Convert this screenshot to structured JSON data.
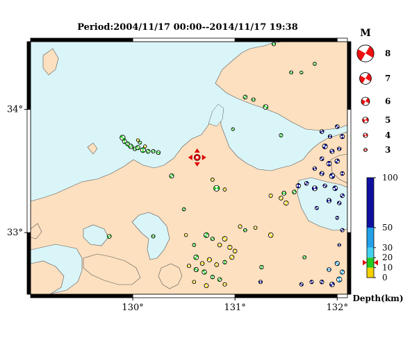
{
  "map": {
    "title": "Period:2004/11/17 00:00--2014/11/17 19:38",
    "lat_ticks": [
      {
        "label": "34°",
        "lat": 34.0
      },
      {
        "label": "33°",
        "lat": 33.0
      }
    ],
    "lon_ticks": [
      {
        "label": "130°",
        "lon": 130.0
      },
      {
        "label": "131°",
        "lon": 131.0
      },
      {
        "label": "132°",
        "lon": 132.0
      }
    ],
    "extent": {
      "lon_min": 129.0,
      "lon_max": 132.1,
      "lat_min": 32.5,
      "lat_max": 34.55
    },
    "colors": {
      "sea": "#d9f5f8",
      "land": "#fde0c0",
      "coast": "#555555",
      "grid": "#000000"
    },
    "epicenter": {
      "lon": 130.63,
      "lat": 33.61,
      "color": "#e00000"
    }
  },
  "legend": {
    "magnitude_title": "M",
    "magnitudes": [
      {
        "label": "8",
        "value": 8
      },
      {
        "label": "7",
        "value": 7
      },
      {
        "label": "6",
        "value": 6
      },
      {
        "label": "5",
        "value": 5
      },
      {
        "label": "4",
        "value": 4
      },
      {
        "label": "3",
        "value": 3
      }
    ],
    "depth_title": "Depth(km)",
    "depth_ticks": [
      {
        "label": "100",
        "value": 100
      },
      {
        "label": "50",
        "value": 50
      },
      {
        "label": "30",
        "value": 30
      },
      {
        "label": "20",
        "value": 20
      },
      {
        "label": "10",
        "value": 10
      },
      {
        "label": "0",
        "value": 0
      }
    ],
    "depth_colors": [
      {
        "from": 0,
        "to": 10,
        "color": "#f5d100"
      },
      {
        "from": 10,
        "to": 20,
        "color": "#22cc22"
      },
      {
        "from": 20,
        "to": 30,
        "color": "#44d0f0"
      },
      {
        "from": 30,
        "to": 50,
        "color": "#22a0e8"
      },
      {
        "from": 50,
        "to": 100,
        "color": "#1010a0"
      }
    ]
  },
  "events": [
    {
      "lon": 129.9,
      "lat": 33.77,
      "m": 4.6,
      "d": 15
    },
    {
      "lon": 129.92,
      "lat": 33.74,
      "m": 4.2,
      "d": 15
    },
    {
      "lon": 129.95,
      "lat": 33.72,
      "m": 4.0,
      "d": 15
    },
    {
      "lon": 129.98,
      "lat": 33.7,
      "m": 4.3,
      "d": 15
    },
    {
      "lon": 130.02,
      "lat": 33.68,
      "m": 3.9,
      "d": 15
    },
    {
      "lon": 130.05,
      "lat": 33.69,
      "m": 4.2,
      "d": 15
    },
    {
      "lon": 130.1,
      "lat": 33.67,
      "m": 4.5,
      "d": 15
    },
    {
      "lon": 130.15,
      "lat": 33.66,
      "m": 4.0,
      "d": 15
    },
    {
      "lon": 130.2,
      "lat": 33.66,
      "m": 3.8,
      "d": 15
    },
    {
      "lon": 130.25,
      "lat": 33.65,
      "m": 4.0,
      "d": 15
    },
    {
      "lon": 130.07,
      "lat": 33.73,
      "m": 3.6,
      "d": 15
    },
    {
      "lon": 130.05,
      "lat": 33.75,
      "m": 3.3,
      "d": 5
    },
    {
      "lon": 130.12,
      "lat": 33.7,
      "m": 3.5,
      "d": 5
    },
    {
      "lon": 131.38,
      "lat": 34.53,
      "m": 3.8,
      "d": 15
    },
    {
      "lon": 131.55,
      "lat": 34.3,
      "m": 3.6,
      "d": 15
    },
    {
      "lon": 131.65,
      "lat": 34.3,
      "m": 3.4,
      "d": 15
    },
    {
      "lon": 131.78,
      "lat": 34.37,
      "m": 3.6,
      "d": 15
    },
    {
      "lon": 131.1,
      "lat": 34.1,
      "m": 4.0,
      "d": 15
    },
    {
      "lon": 131.18,
      "lat": 34.08,
      "m": 3.8,
      "d": 15
    },
    {
      "lon": 131.3,
      "lat": 34.02,
      "m": 4.4,
      "d": 15
    },
    {
      "lon": 130.98,
      "lat": 33.84,
      "m": 3.4,
      "d": 15
    },
    {
      "lon": 131.45,
      "lat": 33.79,
      "m": 3.8,
      "d": 15
    },
    {
      "lon": 130.38,
      "lat": 33.46,
      "m": 4.2,
      "d": 15
    },
    {
      "lon": 130.82,
      "lat": 33.36,
      "m": 4.8,
      "d": 15
    },
    {
      "lon": 130.78,
      "lat": 33.43,
      "m": 3.7,
      "d": 5
    },
    {
      "lon": 130.9,
      "lat": 33.35,
      "m": 3.6,
      "d": 5
    },
    {
      "lon": 130.5,
      "lat": 33.19,
      "m": 3.6,
      "d": 15
    },
    {
      "lon": 131.58,
      "lat": 33.33,
      "m": 4.0,
      "d": 15
    },
    {
      "lon": 131.48,
      "lat": 33.32,
      "m": 4.1,
      "d": 15
    },
    {
      "lon": 131.45,
      "lat": 33.28,
      "m": 4.0,
      "d": 5
    },
    {
      "lon": 131.35,
      "lat": 33.3,
      "m": 3.8,
      "d": 5
    },
    {
      "lon": 131.5,
      "lat": 33.24,
      "m": 4.3,
      "d": 5
    },
    {
      "lon": 129.77,
      "lat": 32.97,
      "m": 4.0,
      "d": 15
    },
    {
      "lon": 130.2,
      "lat": 32.97,
      "m": 3.7,
      "d": 15
    },
    {
      "lon": 130.52,
      "lat": 32.98,
      "m": 3.5,
      "d": 5
    },
    {
      "lon": 130.6,
      "lat": 32.9,
      "m": 3.6,
      "d": 15
    },
    {
      "lon": 130.72,
      "lat": 32.98,
      "m": 4.5,
      "d": 15
    },
    {
      "lon": 130.78,
      "lat": 32.95,
      "m": 3.8,
      "d": 15
    },
    {
      "lon": 130.85,
      "lat": 32.9,
      "m": 4.0,
      "d": 5
    },
    {
      "lon": 130.9,
      "lat": 32.95,
      "m": 4.4,
      "d": 5
    },
    {
      "lon": 130.95,
      "lat": 32.88,
      "m": 4.2,
      "d": 5
    },
    {
      "lon": 131.05,
      "lat": 33.05,
      "m": 3.8,
      "d": 5
    },
    {
      "lon": 131.1,
      "lat": 33.02,
      "m": 3.6,
      "d": 15
    },
    {
      "lon": 131.2,
      "lat": 33.04,
      "m": 3.6,
      "d": 5
    },
    {
      "lon": 131.35,
      "lat": 32.98,
      "m": 4.4,
      "d": 5
    },
    {
      "lon": 131.0,
      "lat": 32.85,
      "m": 4.0,
      "d": 5
    },
    {
      "lon": 130.62,
      "lat": 32.8,
      "m": 4.4,
      "d": 15
    },
    {
      "lon": 130.68,
      "lat": 32.75,
      "m": 4.0,
      "d": 5
    },
    {
      "lon": 130.75,
      "lat": 32.78,
      "m": 4.2,
      "d": 5
    },
    {
      "lon": 130.82,
      "lat": 32.74,
      "m": 4.0,
      "d": 5
    },
    {
      "lon": 130.9,
      "lat": 32.76,
      "m": 3.9,
      "d": 15
    },
    {
      "lon": 130.97,
      "lat": 32.8,
      "m": 4.2,
      "d": 5
    },
    {
      "lon": 130.55,
      "lat": 32.73,
      "m": 3.8,
      "d": 5
    },
    {
      "lon": 130.62,
      "lat": 32.7,
      "m": 4.2,
      "d": 15
    },
    {
      "lon": 130.7,
      "lat": 32.68,
      "m": 4.3,
      "d": 15
    },
    {
      "lon": 130.78,
      "lat": 32.64,
      "m": 3.9,
      "d": 15
    },
    {
      "lon": 130.85,
      "lat": 32.62,
      "m": 4.0,
      "d": 15
    },
    {
      "lon": 130.9,
      "lat": 32.58,
      "m": 3.8,
      "d": 5
    },
    {
      "lon": 130.6,
      "lat": 32.6,
      "m": 3.6,
      "d": 5
    },
    {
      "lon": 130.72,
      "lat": 32.57,
      "m": 4.1,
      "d": 5
    },
    {
      "lon": 131.26,
      "lat": 32.72,
      "m": 3.9,
      "d": 15
    },
    {
      "lon": 131.68,
      "lat": 32.8,
      "m": 3.6,
      "d": 15
    },
    {
      "lon": 131.25,
      "lat": 32.6,
      "m": 3.8,
      "d": 75
    },
    {
      "lon": 131.65,
      "lat": 32.58,
      "m": 3.8,
      "d": 75
    },
    {
      "lon": 131.75,
      "lat": 32.6,
      "m": 3.8,
      "d": 75
    },
    {
      "lon": 131.85,
      "lat": 32.6,
      "m": 4.0,
      "d": 75
    },
    {
      "lon": 131.95,
      "lat": 32.58,
      "m": 4.4,
      "d": 75
    },
    {
      "lon": 131.92,
      "lat": 32.7,
      "m": 4.0,
      "d": 40
    },
    {
      "lon": 132.0,
      "lat": 32.75,
      "m": 4.2,
      "d": 40
    },
    {
      "lon": 132.02,
      "lat": 32.62,
      "m": 4.6,
      "d": 40
    },
    {
      "lon": 132.05,
      "lat": 32.68,
      "m": 4.2,
      "d": 40
    },
    {
      "lon": 131.85,
      "lat": 33.82,
      "m": 4.0,
      "d": 75
    },
    {
      "lon": 131.93,
      "lat": 33.78,
      "m": 3.9,
      "d": 75
    },
    {
      "lon": 132.0,
      "lat": 33.86,
      "m": 4.0,
      "d": 75
    },
    {
      "lon": 132.05,
      "lat": 33.78,
      "m": 4.2,
      "d": 75
    },
    {
      "lon": 131.88,
      "lat": 33.7,
      "m": 4.5,
      "d": 75
    },
    {
      "lon": 131.95,
      "lat": 33.66,
      "m": 4.2,
      "d": 75
    },
    {
      "lon": 132.02,
      "lat": 33.68,
      "m": 3.9,
      "d": 75
    },
    {
      "lon": 131.85,
      "lat": 33.6,
      "m": 4.0,
      "d": 75
    },
    {
      "lon": 131.92,
      "lat": 33.56,
      "m": 4.4,
      "d": 75
    },
    {
      "lon": 132.0,
      "lat": 33.58,
      "m": 4.3,
      "d": 75
    },
    {
      "lon": 131.78,
      "lat": 33.52,
      "m": 3.9,
      "d": 75
    },
    {
      "lon": 131.85,
      "lat": 33.48,
      "m": 4.2,
      "d": 75
    },
    {
      "lon": 131.95,
      "lat": 33.46,
      "m": 4.6,
      "d": 75
    },
    {
      "lon": 132.05,
      "lat": 33.48,
      "m": 4.0,
      "d": 75
    },
    {
      "lon": 131.7,
      "lat": 33.4,
      "m": 4.0,
      "d": 75
    },
    {
      "lon": 131.78,
      "lat": 33.36,
      "m": 4.5,
      "d": 75
    },
    {
      "lon": 131.88,
      "lat": 33.38,
      "m": 3.9,
      "d": 75
    },
    {
      "lon": 131.98,
      "lat": 33.36,
      "m": 4.4,
      "d": 75
    },
    {
      "lon": 131.62,
      "lat": 33.38,
      "m": 4.3,
      "d": 75
    },
    {
      "lon": 132.05,
      "lat": 33.3,
      "m": 4.0,
      "d": 75
    },
    {
      "lon": 131.92,
      "lat": 33.26,
      "m": 4.3,
      "d": 75
    },
    {
      "lon": 132.02,
      "lat": 33.24,
      "m": 3.9,
      "d": 75
    },
    {
      "lon": 131.8,
      "lat": 33.2,
      "m": 3.7,
      "d": 75
    },
    {
      "lon": 132.0,
      "lat": 33.12,
      "m": 3.6,
      "d": 75
    },
    {
      "lon": 132.05,
      "lat": 33.02,
      "m": 3.8,
      "d": 75
    },
    {
      "lon": 132.02,
      "lat": 32.9,
      "m": 3.4,
      "d": 75
    }
  ]
}
